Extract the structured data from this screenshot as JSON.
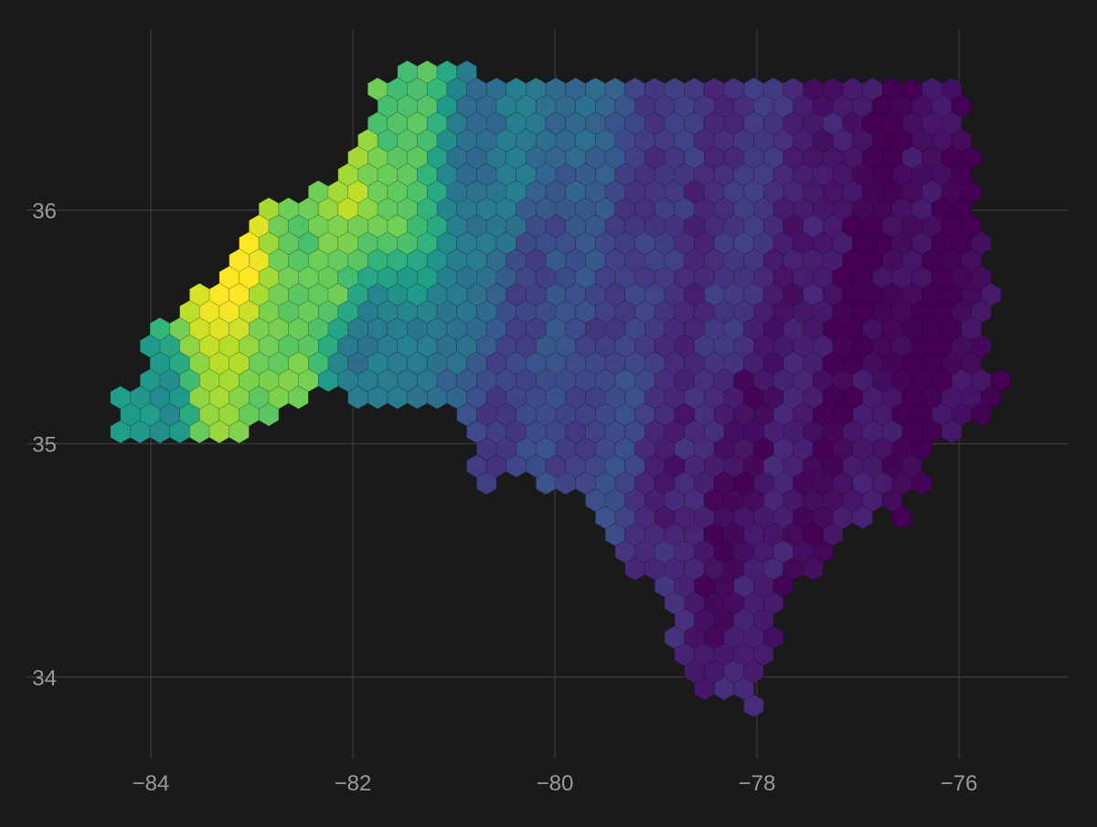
{
  "chart_data": {
    "type": "hexbin-map",
    "title": "",
    "xlabel": "",
    "ylabel": "",
    "xlim": [
      -84.5,
      -75.0
    ],
    "ylim": [
      33.65,
      36.8
    ],
    "x_ticks": [
      {
        "value": -84,
        "label": "−84"
      },
      {
        "value": -82,
        "label": "−82"
      },
      {
        "value": -80,
        "label": "−80"
      },
      {
        "value": -78,
        "label": "−78"
      },
      {
        "value": -76,
        "label": "−76"
      }
    ],
    "y_ticks": [
      {
        "value": 34,
        "label": "34"
      },
      {
        "value": 35,
        "label": "35"
      },
      {
        "value": 36,
        "label": "36"
      }
    ],
    "grid": true,
    "legend": "none",
    "color_scale": "viridis",
    "colors": {
      "background": "#1a1a1a",
      "grid": "#3d3d3d",
      "tick_text": "#9a9a9a"
    },
    "region_outline_lonlat": [
      [
        -84.35,
        35.2
      ],
      [
        -84.15,
        35.25
      ],
      [
        -84.0,
        35.35
      ],
      [
        -84.05,
        35.55
      ],
      [
        -83.85,
        35.5
      ],
      [
        -83.55,
        35.68
      ],
      [
        -83.25,
        35.75
      ],
      [
        -83.05,
        35.85
      ],
      [
        -82.95,
        36.05
      ],
      [
        -82.75,
        35.98
      ],
      [
        -82.45,
        36.08
      ],
      [
        -82.15,
        36.15
      ],
      [
        -81.9,
        36.28
      ],
      [
        -81.75,
        36.35
      ],
      [
        -81.8,
        36.55
      ],
      [
        -81.4,
        36.6
      ],
      [
        -80.85,
        36.6
      ],
      [
        -80.0,
        36.55
      ],
      [
        -79.0,
        36.55
      ],
      [
        -78.0,
        36.55
      ],
      [
        -77.2,
        36.55
      ],
      [
        -76.5,
        36.55
      ],
      [
        -76.05,
        36.55
      ],
      [
        -75.95,
        36.45
      ],
      [
        -75.85,
        36.22
      ],
      [
        -75.88,
        36.05
      ],
      [
        -75.72,
        35.85
      ],
      [
        -75.6,
        35.62
      ],
      [
        -75.8,
        35.52
      ],
      [
        -75.72,
        35.32
      ],
      [
        -75.55,
        35.28
      ],
      [
        -75.6,
        35.08
      ],
      [
        -75.85,
        35.12
      ],
      [
        -75.95,
        35.0
      ],
      [
        -76.25,
        34.98
      ],
      [
        -76.35,
        34.82
      ],
      [
        -76.5,
        34.78
      ],
      [
        -76.55,
        34.58
      ],
      [
        -76.65,
        34.72
      ],
      [
        -76.85,
        34.7
      ],
      [
        -77.05,
        34.62
      ],
      [
        -77.25,
        34.6
      ],
      [
        -77.45,
        34.45
      ],
      [
        -77.7,
        34.32
      ],
      [
        -77.85,
        34.12
      ],
      [
        -77.95,
        33.95
      ],
      [
        -78.0,
        33.82
      ],
      [
        -78.1,
        33.88
      ],
      [
        -78.35,
        33.9
      ],
      [
        -78.6,
        33.95
      ],
      [
        -78.75,
        34.05
      ],
      [
        -78.95,
        34.3
      ],
      [
        -79.2,
        34.45
      ],
      [
        -79.5,
        34.6
      ],
      [
        -79.7,
        34.8
      ],
      [
        -80.1,
        34.82
      ],
      [
        -80.35,
        34.85
      ],
      [
        -80.75,
        34.8
      ],
      [
        -80.8,
        35.0
      ],
      [
        -80.9,
        35.05
      ],
      [
        -81.05,
        35.15
      ],
      [
        -81.5,
        35.18
      ],
      [
        -82.05,
        35.2
      ],
      [
        -82.35,
        35.2
      ],
      [
        -82.75,
        35.1
      ],
      [
        -83.05,
        35.02
      ],
      [
        -83.25,
        34.98
      ],
      [
        -83.6,
        35.0
      ],
      [
        -84.05,
        35.0
      ],
      [
        -84.3,
        35.0
      ],
      [
        -84.35,
        35.2
      ]
    ],
    "value_gradient": [
      {
        "lon": -83.3,
        "lat": 35.65,
        "value": 1.0
      },
      {
        "lon": -83.2,
        "lat": 35.35,
        "value": 0.85
      },
      {
        "lon": -82.95,
        "lat": 35.25,
        "value": 0.8
      },
      {
        "lon": -82.2,
        "lat": 35.75,
        "value": 0.75
      },
      {
        "lon": -82.0,
        "lat": 36.1,
        "value": 0.85
      },
      {
        "lon": -81.6,
        "lat": 36.45,
        "value": 0.75
      },
      {
        "lon": -84.0,
        "lat": 35.15,
        "value": 0.5
      },
      {
        "lon": -81.8,
        "lat": 35.4,
        "value": 0.4
      },
      {
        "lon": -80.7,
        "lat": 36.3,
        "value": 0.38
      },
      {
        "lon": -80.0,
        "lat": 35.5,
        "value": 0.22
      },
      {
        "lon": -80.5,
        "lat": 34.9,
        "value": 0.2
      },
      {
        "lon": -78.5,
        "lat": 35.8,
        "value": 0.14
      },
      {
        "lon": -78.0,
        "lat": 34.8,
        "value": 0.06
      },
      {
        "lon": -76.5,
        "lat": 35.5,
        "value": 0.0
      },
      {
        "lon": -76.0,
        "lat": 36.2,
        "value": 0.03
      },
      {
        "lon": -77.0,
        "lat": 35.0,
        "value": 0.04
      },
      {
        "lon": -75.8,
        "lat": 35.3,
        "value": 0.02
      }
    ]
  }
}
